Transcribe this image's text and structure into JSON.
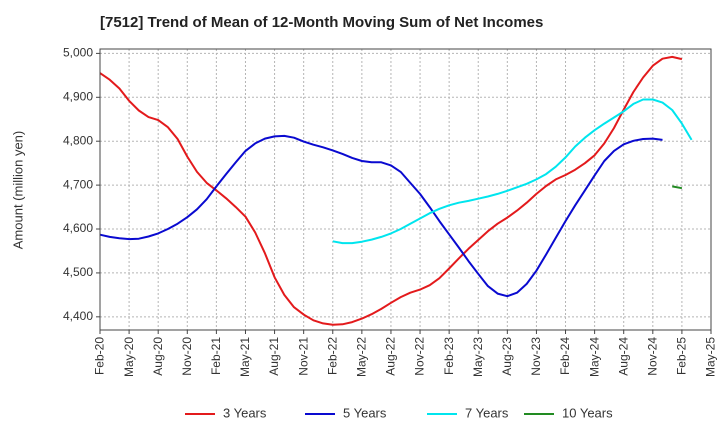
{
  "chart_data": {
    "type": "line",
    "title": "[7512]  Trend of Mean of 12-Month Moving Sum of Net Incomes",
    "ylabel": "Amount (million yen)",
    "xlabel": "",
    "ylim": [
      4370,
      5010
    ],
    "yticks": [
      4400,
      4500,
      4600,
      4700,
      4800,
      4900,
      5000
    ],
    "ytick_labels": [
      "4,400",
      "4,500",
      "4,600",
      "4,700",
      "4,800",
      "4,900",
      "5,000"
    ],
    "xticks": [
      "Feb-20",
      "May-20",
      "Aug-20",
      "Nov-20",
      "Feb-21",
      "May-21",
      "Aug-21",
      "Nov-21",
      "Feb-22",
      "May-22",
      "Aug-22",
      "Nov-22",
      "Feb-23",
      "May-23",
      "Aug-23",
      "Nov-23",
      "Feb-24",
      "May-24",
      "Aug-24",
      "Nov-24",
      "Feb-25",
      "May-25"
    ],
    "grid": true,
    "legend_position": "bottom",
    "series": [
      {
        "name": "3 Years",
        "color": "#e31a1c",
        "start": "Feb-20",
        "values": [
          4955,
          4940,
          4920,
          4892,
          4870,
          4855,
          4848,
          4832,
          4805,
          4765,
          4730,
          4705,
          4688,
          4670,
          4650,
          4628,
          4592,
          4545,
          4490,
          4450,
          4422,
          4405,
          4392,
          4385,
          4382,
          4383,
          4388,
          4396,
          4406,
          4418,
          4432,
          4445,
          4455,
          4462,
          4472,
          4488,
          4510,
          4533,
          4555,
          4575,
          4595,
          4612,
          4626,
          4642,
          4660,
          4680,
          4698,
          4713,
          4723,
          4735,
          4750,
          4768,
          4795,
          4830,
          4872,
          4912,
          4945,
          4972,
          4988,
          4992,
          4987
        ]
      },
      {
        "name": "5 Years",
        "color": "#0a0ad0",
        "start": "Feb-20",
        "values": [
          4587,
          4582,
          4579,
          4577,
          4578,
          4583,
          4590,
          4600,
          4612,
          4627,
          4645,
          4668,
          4697,
          4725,
          4752,
          4778,
          4795,
          4806,
          4811,
          4812,
          4808,
          4799,
          4792,
          4786,
          4779,
          4771,
          4762,
          4755,
          4752,
          4752,
          4745,
          4730,
          4705,
          4680,
          4650,
          4618,
          4588,
          4558,
          4527,
          4498,
          4470,
          4453,
          4447,
          4455,
          4475,
          4505,
          4542,
          4580,
          4618,
          4654,
          4688,
          4722,
          4755,
          4778,
          4793,
          4801,
          4805,
          4806,
          4803
        ]
      },
      {
        "name": "7 Years",
        "color": "#00e5ee",
        "start": "Feb-22",
        "values": [
          4572,
          4568,
          4568,
          4571,
          4576,
          4582,
          4590,
          4600,
          4612,
          4624,
          4636,
          4646,
          4654,
          4660,
          4664,
          4669,
          4674,
          4680,
          4687,
          4695,
          4703,
          4713,
          4725,
          4742,
          4763,
          4788,
          4808,
          4825,
          4840,
          4854,
          4868,
          4885,
          4895,
          4895,
          4888,
          4871,
          4840,
          4803
        ]
      },
      {
        "name": "10 Years",
        "color": "#228b22",
        "start": "Jan-25",
        "values": [
          4697,
          4693
        ]
      }
    ]
  }
}
